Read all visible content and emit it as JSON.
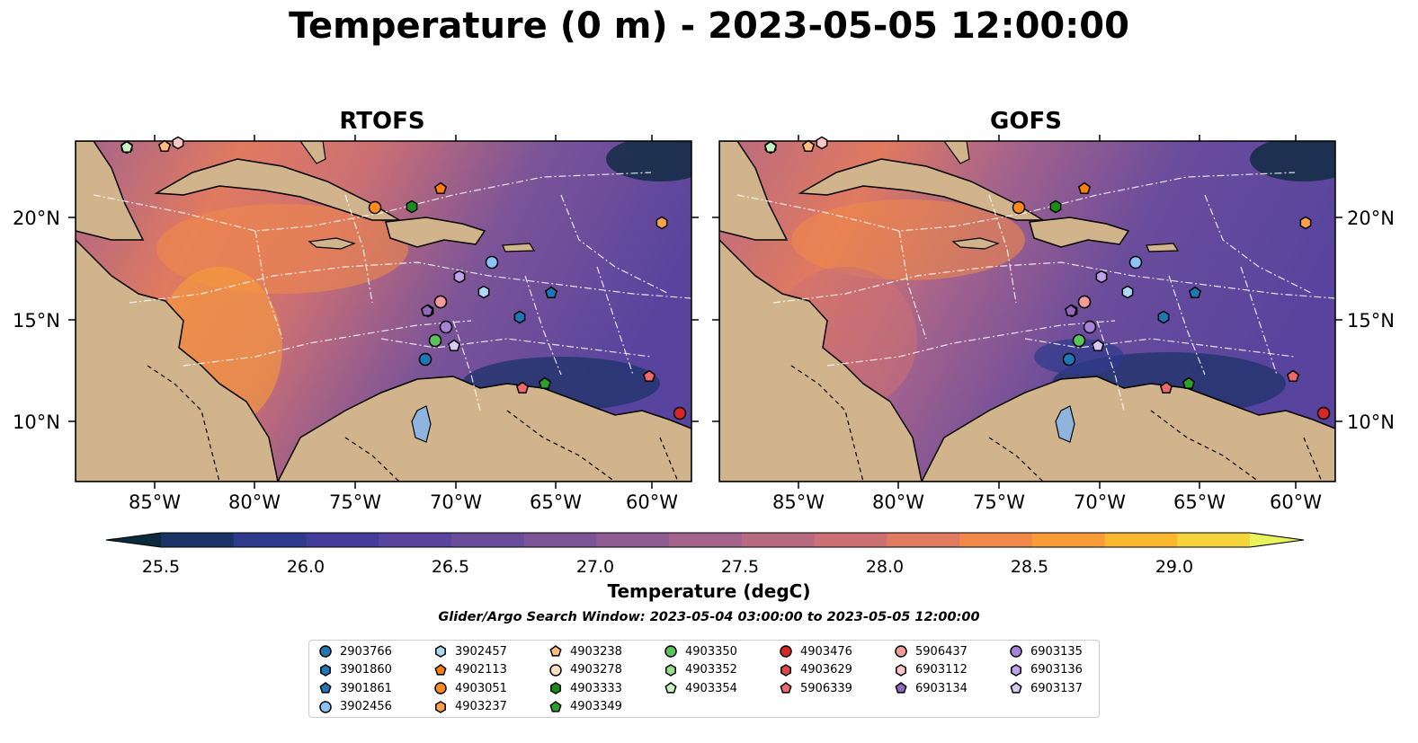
{
  "title": "Temperature (0 m) - 2023-05-05 12:00:00",
  "panels": [
    {
      "title": "RTOFS"
    },
    {
      "title": "GOFS"
    }
  ],
  "axes": {
    "lat_ticks": [
      "20°N",
      "15°N",
      "10°N"
    ],
    "lon_ticks": [
      "85°W",
      "80°W",
      "75°W",
      "70°W",
      "65°W",
      "60°W"
    ]
  },
  "colorbar": {
    "label": "Temperature (degC)",
    "ticks": [
      "25.5",
      "26.0",
      "26.5",
      "27.0",
      "27.5",
      "28.0",
      "28.5",
      "29.0"
    ],
    "colors": [
      "#0c2a3e",
      "#1c3368",
      "#2e3a8c",
      "#443c9a",
      "#58449e",
      "#6a4c9c",
      "#7c5498",
      "#905c92",
      "#a4638c",
      "#b86a82",
      "#cc7074",
      "#e07a60",
      "#f0884a",
      "#f89c38",
      "#fab82e",
      "#f6d53c",
      "#e8f25c"
    ]
  },
  "search_window": "Glider/Argo Search Window: 2023-05-04 03:00:00 to 2023-05-05 12:00:00",
  "legend": {
    "items": [
      {
        "label": "2903766",
        "color": "#1f77b4",
        "marker": "circle"
      },
      {
        "label": "3901860",
        "color": "#1f77b4",
        "marker": "hexagon"
      },
      {
        "label": "3901861",
        "color": "#1f77b4",
        "marker": "pentagon"
      },
      {
        "label": "3902456",
        "color": "#89c4f4",
        "marker": "circle"
      },
      {
        "label": "3902457",
        "color": "#aed9f5",
        "marker": "hexagon"
      },
      {
        "label": "4902113",
        "color": "#ff7f0e",
        "marker": "pentagon"
      },
      {
        "label": "4903051",
        "color": "#ff8c1a",
        "marker": "circle"
      },
      {
        "label": "4903237",
        "color": "#ffa04d",
        "marker": "hexagon"
      },
      {
        "label": "4903238",
        "color": "#ffbe80",
        "marker": "pentagon"
      },
      {
        "label": "4903278",
        "color": "#ffe0c2",
        "marker": "circle"
      },
      {
        "label": "4903333",
        "color": "#1a8c1a",
        "marker": "hexagon"
      },
      {
        "label": "4903349",
        "color": "#2ca02c",
        "marker": "pentagon"
      },
      {
        "label": "4903350",
        "color": "#5cc25c",
        "marker": "circle"
      },
      {
        "label": "4903352",
        "color": "#98df8a",
        "marker": "hexagon"
      },
      {
        "label": "4903354",
        "color": "#c8f5c0",
        "marker": "pentagon"
      },
      {
        "label": "4903476",
        "color": "#d62728",
        "marker": "circle"
      },
      {
        "label": "4903629",
        "color": "#e04848",
        "marker": "hexagon"
      },
      {
        "label": "5906339",
        "color": "#ee6a6a",
        "marker": "pentagon"
      },
      {
        "label": "5906437",
        "color": "#f59a9a",
        "marker": "circle"
      },
      {
        "label": "6903112",
        "color": "#fbc6c6",
        "marker": "hexagon"
      },
      {
        "label": "6903134",
        "color": "#9467bd",
        "marker": "pentagon"
      },
      {
        "label": "6903135",
        "color": "#a882d6",
        "marker": "circle"
      },
      {
        "label": "6903136",
        "color": "#c0a2e8",
        "marker": "hexagon"
      },
      {
        "label": "6903137",
        "color": "#dcc8f5",
        "marker": "pentagon"
      }
    ]
  }
}
